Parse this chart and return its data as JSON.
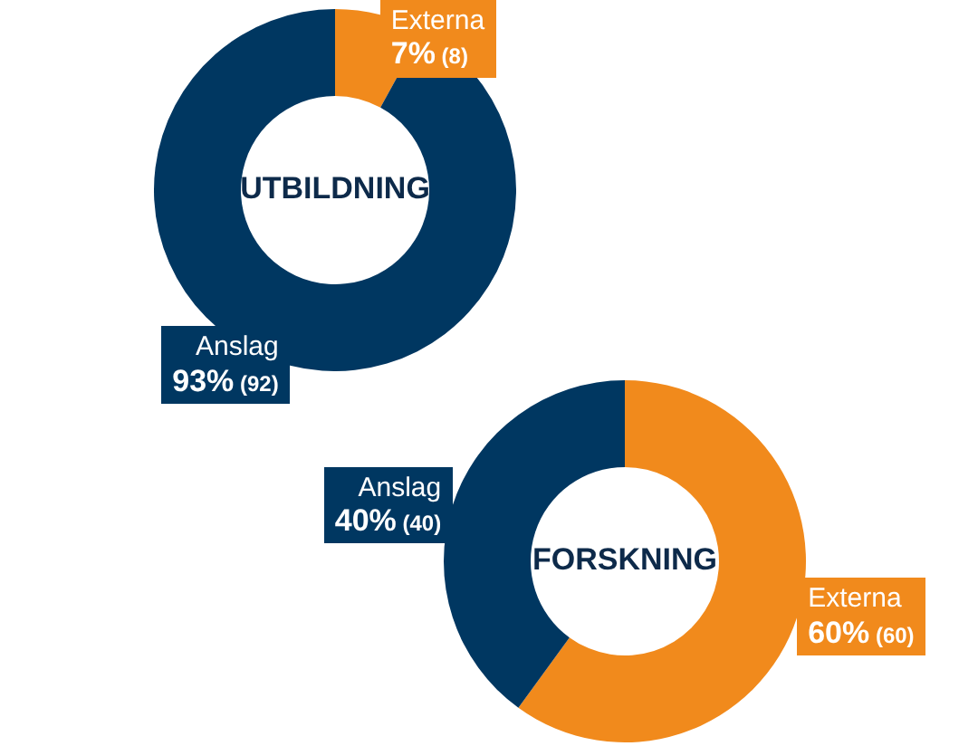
{
  "chart_data": [
    {
      "type": "donut",
      "title": "UTBILDNING",
      "categories": [
        "Externa",
        "Anslag"
      ],
      "values": [
        8,
        92
      ],
      "colors": [
        "#f18a1c",
        "#003761"
      ],
      "value_labels": [
        "7% (8)",
        "93% (92)"
      ]
    },
    {
      "type": "donut",
      "title": "FORSKNING",
      "categories": [
        "Externa",
        "Anslag"
      ],
      "values": [
        60,
        40
      ],
      "colors": [
        "#f18a1c",
        "#003761"
      ],
      "value_labels": [
        "60% (60)",
        "40% (40)"
      ]
    }
  ]
}
